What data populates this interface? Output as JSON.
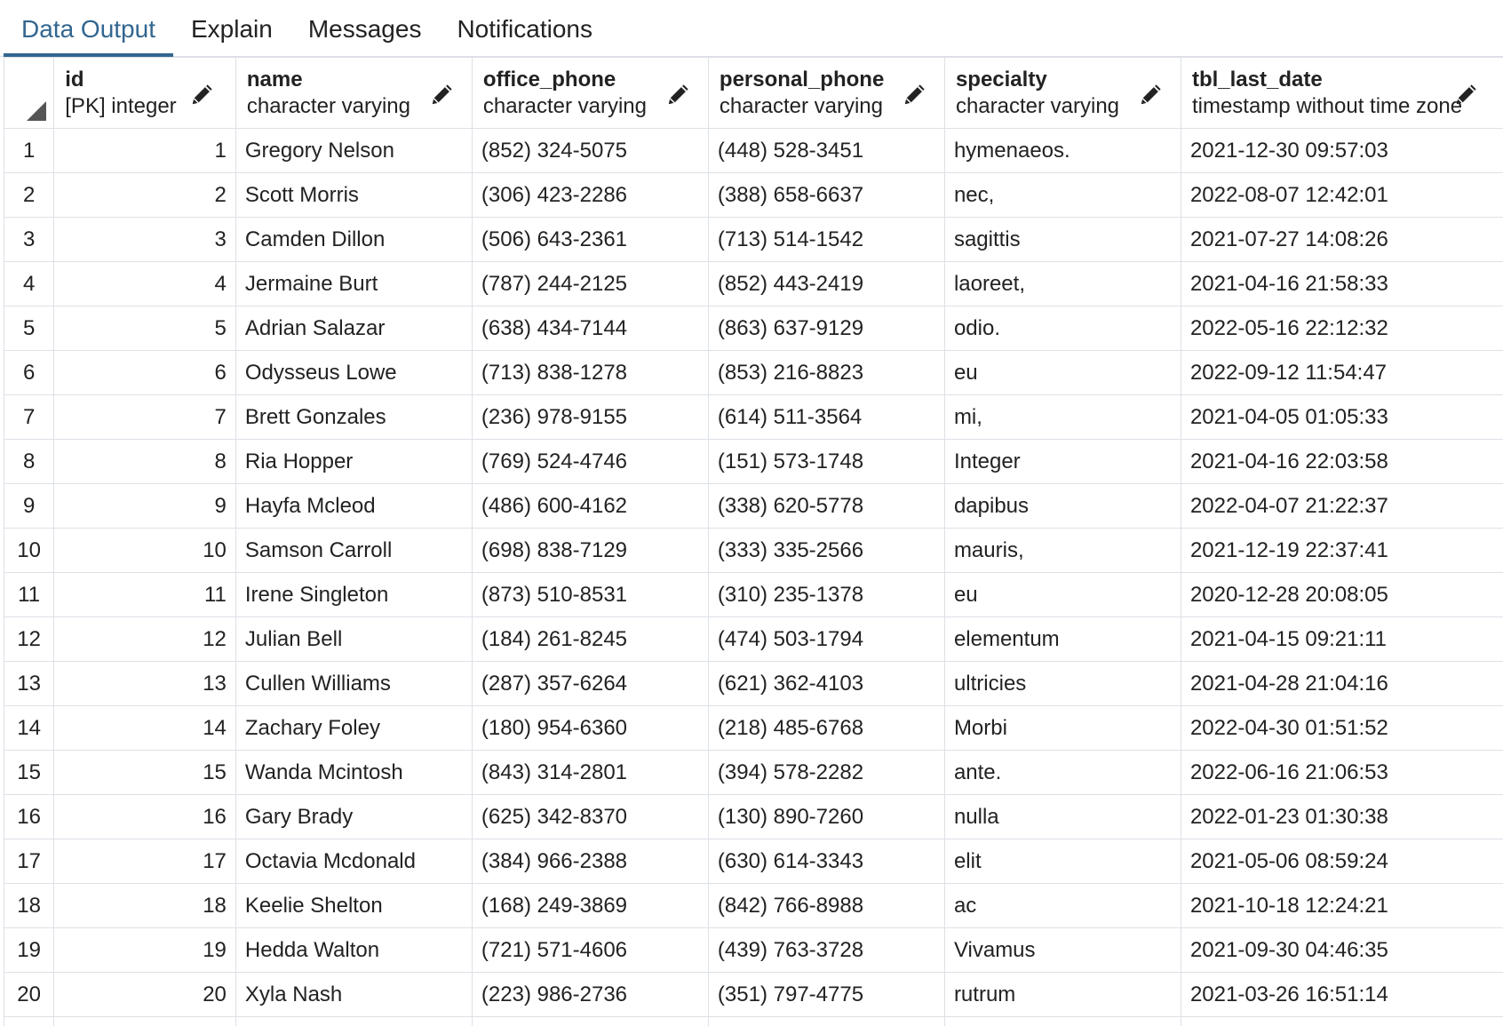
{
  "tabs": [
    {
      "label": "Data Output",
      "active": true
    },
    {
      "label": "Explain",
      "active": false
    },
    {
      "label": "Messages",
      "active": false
    },
    {
      "label": "Notifications",
      "active": false
    }
  ],
  "grid": {
    "columns": [
      {
        "name": "id",
        "type": "[PK] integer",
        "edit_icon": "pencil-icon"
      },
      {
        "name": "name",
        "type": "character varying",
        "edit_icon": "pencil-icon"
      },
      {
        "name": "office_phone",
        "type": "character varying",
        "edit_icon": "pencil-icon"
      },
      {
        "name": "personal_phone",
        "type": "character varying",
        "edit_icon": "pencil-icon"
      },
      {
        "name": "specialty",
        "type": "character varying",
        "edit_icon": "pencil-icon"
      },
      {
        "name": "tbl_last_date",
        "type": "timestamp without time zone",
        "edit_icon": "pencil-icon"
      }
    ],
    "rows": [
      [
        "1",
        "1",
        "Gregory Nelson",
        "(852) 324-5075",
        "(448) 528-3451",
        "hymenaeos.",
        "2021-12-30 09:57:03"
      ],
      [
        "2",
        "2",
        "Scott Morris",
        "(306) 423-2286",
        "(388) 658-6637",
        "nec,",
        "2022-08-07 12:42:01"
      ],
      [
        "3",
        "3",
        "Camden Dillon",
        "(506) 643-2361",
        "(713) 514-1542",
        "sagittis",
        "2021-07-27 14:08:26"
      ],
      [
        "4",
        "4",
        "Jermaine Burt",
        "(787) 244-2125",
        "(852) 443-2419",
        "laoreet,",
        "2021-04-16 21:58:33"
      ],
      [
        "5",
        "5",
        "Adrian Salazar",
        "(638) 434-7144",
        "(863) 637-9129",
        "odio.",
        "2022-05-16 22:12:32"
      ],
      [
        "6",
        "6",
        "Odysseus Lowe",
        "(713) 838-1278",
        "(853) 216-8823",
        "eu",
        "2022-09-12 11:54:47"
      ],
      [
        "7",
        "7",
        "Brett Gonzales",
        "(236) 978-9155",
        "(614) 511-3564",
        "mi,",
        "2021-04-05 01:05:33"
      ],
      [
        "8",
        "8",
        "Ria Hopper",
        "(769) 524-4746",
        "(151) 573-1748",
        "Integer",
        "2021-04-16 22:03:58"
      ],
      [
        "9",
        "9",
        "Hayfa Mcleod",
        "(486) 600-4162",
        "(338) 620-5778",
        "dapibus",
        "2022-04-07 21:22:37"
      ],
      [
        "10",
        "10",
        "Samson Carroll",
        "(698) 838-7129",
        "(333) 335-2566",
        "mauris,",
        "2021-12-19 22:37:41"
      ],
      [
        "11",
        "11",
        "Irene Singleton",
        "(873) 510-8531",
        "(310) 235-1378",
        "eu",
        "2020-12-28 20:08:05"
      ],
      [
        "12",
        "12",
        "Julian Bell",
        "(184) 261-8245",
        "(474) 503-1794",
        "elementum",
        "2021-04-15 09:21:11"
      ],
      [
        "13",
        "13",
        "Cullen Williams",
        "(287) 357-6264",
        "(621) 362-4103",
        "ultricies",
        "2021-04-28 21:04:16"
      ],
      [
        "14",
        "14",
        "Zachary Foley",
        "(180) 954-6360",
        "(218) 485-6768",
        "Morbi",
        "2022-04-30 01:51:52"
      ],
      [
        "15",
        "15",
        "Wanda Mcintosh",
        "(843) 314-2801",
        "(394) 578-2282",
        "ante.",
        "2022-06-16 21:06:53"
      ],
      [
        "16",
        "16",
        "Gary Brady",
        "(625) 342-8370",
        "(130) 890-7260",
        "nulla",
        "2022-01-23 01:30:38"
      ],
      [
        "17",
        "17",
        "Octavia Mcdonald",
        "(384) 966-2388",
        "(630) 614-3343",
        "elit",
        "2021-05-06 08:59:24"
      ],
      [
        "18",
        "18",
        "Keelie Shelton",
        "(168) 249-3869",
        "(842) 766-8988",
        "ac",
        "2021-10-18 12:24:21"
      ],
      [
        "19",
        "19",
        "Hedda Walton",
        "(721) 571-4606",
        "(439) 763-3728",
        "Vivamus",
        "2021-09-30 04:46:35"
      ],
      [
        "20",
        "20",
        "Xyla Nash",
        "(223) 986-2736",
        "(351) 797-4775",
        "rutrum",
        "2021-03-26 16:51:14"
      ]
    ]
  },
  "colors": {
    "accent": "#326690",
    "text": "#222222",
    "grid_border": "#dde0e6"
  }
}
